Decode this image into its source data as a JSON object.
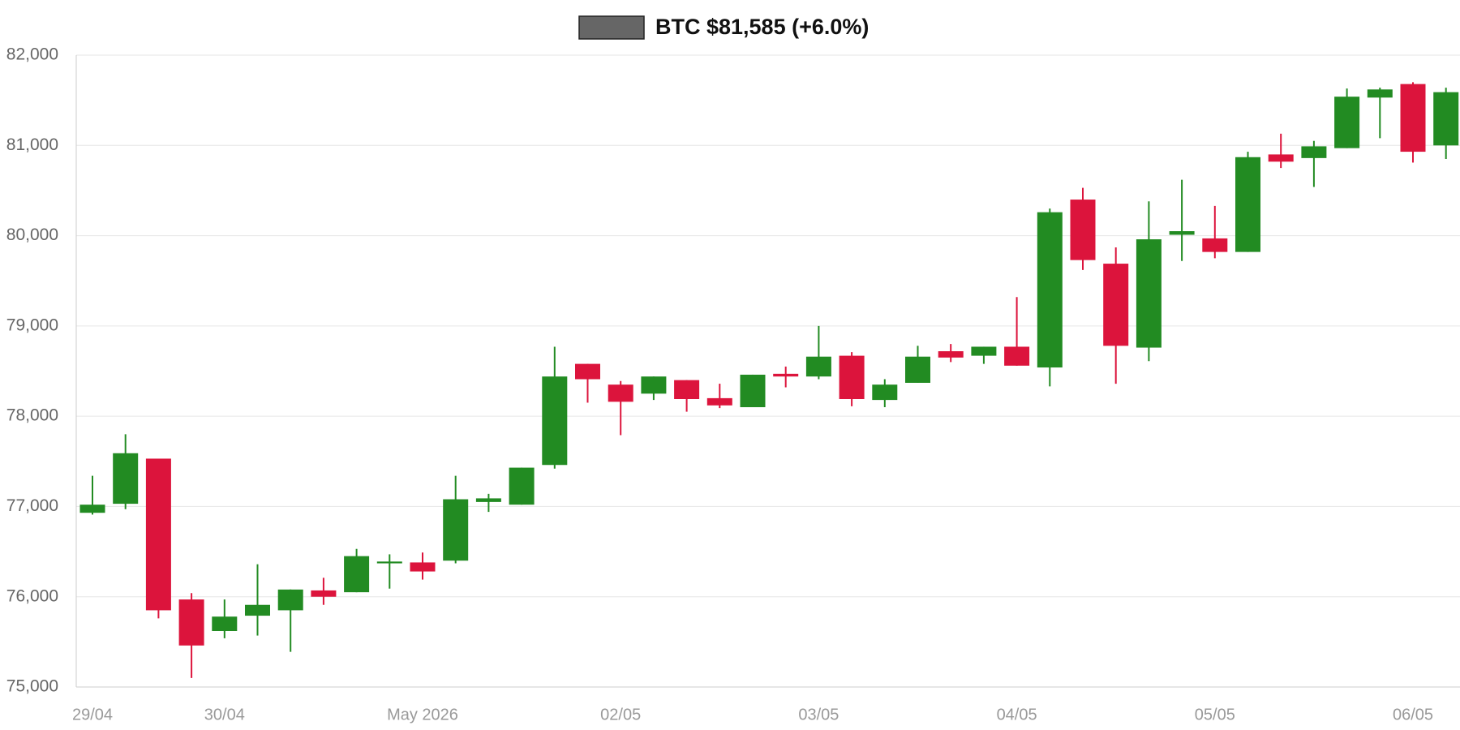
{
  "chart_data": {
    "type": "candlestick",
    "categories": [
      "29/04",
      null,
      null,
      null,
      "30/04",
      null,
      null,
      null,
      null,
      null,
      "May 2026",
      null,
      null,
      null,
      null,
      null,
      "02/05",
      null,
      null,
      null,
      null,
      null,
      "03/05",
      null,
      null,
      null,
      null,
      null,
      "04/05",
      null,
      null,
      null,
      null,
      null,
      "05/05",
      null,
      null,
      null,
      null,
      null,
      "06/05",
      null
    ],
    "series": [
      {
        "name": "BTC $81,585 (+6.0%)",
        "color": "#666666",
        "up_color": "#228b22",
        "down_color": "#dc143c",
        "open": [
          76930,
          77030,
          77530,
          75970,
          75620,
          75790,
          75850,
          76070,
          76050,
          76370,
          76380,
          76400,
          77050,
          77020,
          77460,
          78580,
          78350,
          78250,
          78400,
          78200,
          78100,
          78470,
          78440,
          78670,
          78180,
          78370,
          78720,
          78670,
          78770,
          78540,
          80400,
          79690,
          78760,
          80010,
          79970,
          79820,
          80900,
          80860,
          80970,
          81530,
          81680,
          81000
        ],
        "high": [
          77340,
          77800,
          77530,
          76040,
          75970,
          76360,
          76080,
          76210,
          76530,
          76470,
          76490,
          77340,
          77140,
          77430,
          78770,
          78580,
          78390,
          78440,
          78400,
          78360,
          78460,
          78550,
          79000,
          78710,
          78410,
          78780,
          78800,
          78770,
          79320,
          80300,
          80530,
          79870,
          80380,
          80620,
          80330,
          80930,
          81130,
          81050,
          81630,
          81640,
          81700,
          81640
        ],
        "low": [
          76910,
          76970,
          75760,
          75100,
          75540,
          75570,
          75390,
          75910,
          76050,
          76090,
          76190,
          76370,
          76940,
          77020,
          77420,
          78150,
          77790,
          78180,
          78050,
          78090,
          78100,
          78320,
          78410,
          78110,
          78100,
          78370,
          78600,
          78580,
          78560,
          78330,
          79620,
          78360,
          78610,
          79720,
          79750,
          79820,
          80750,
          80540,
          80970,
          81080,
          80810,
          80850
        ],
        "close": [
          77020,
          77590,
          75850,
          75460,
          75780,
          75910,
          76080,
          76000,
          76450,
          76390,
          76280,
          77080,
          77090,
          77430,
          78440,
          78410,
          78160,
          78440,
          78190,
          78120,
          78460,
          78440,
          78660,
          78190,
          78350,
          78660,
          78650,
          78770,
          78560,
          80260,
          79730,
          78780,
          79960,
          80050,
          79820,
          80870,
          80820,
          80990,
          81540,
          81620,
          80930,
          81590
        ]
      }
    ],
    "ylim": [
      75000,
      82000
    ],
    "yticks": [
      {
        "value": 75000,
        "label": "75,000"
      },
      {
        "value": 76000,
        "label": "76,000"
      },
      {
        "value": 77000,
        "label": "77,000"
      },
      {
        "value": 78000,
        "label": "78,000"
      },
      {
        "value": 79000,
        "label": "79,000"
      },
      {
        "value": 80000,
        "label": "80,000"
      },
      {
        "value": 81000,
        "label": "81,000"
      },
      {
        "value": 82000,
        "label": "82,000"
      }
    ],
    "grid": true
  }
}
